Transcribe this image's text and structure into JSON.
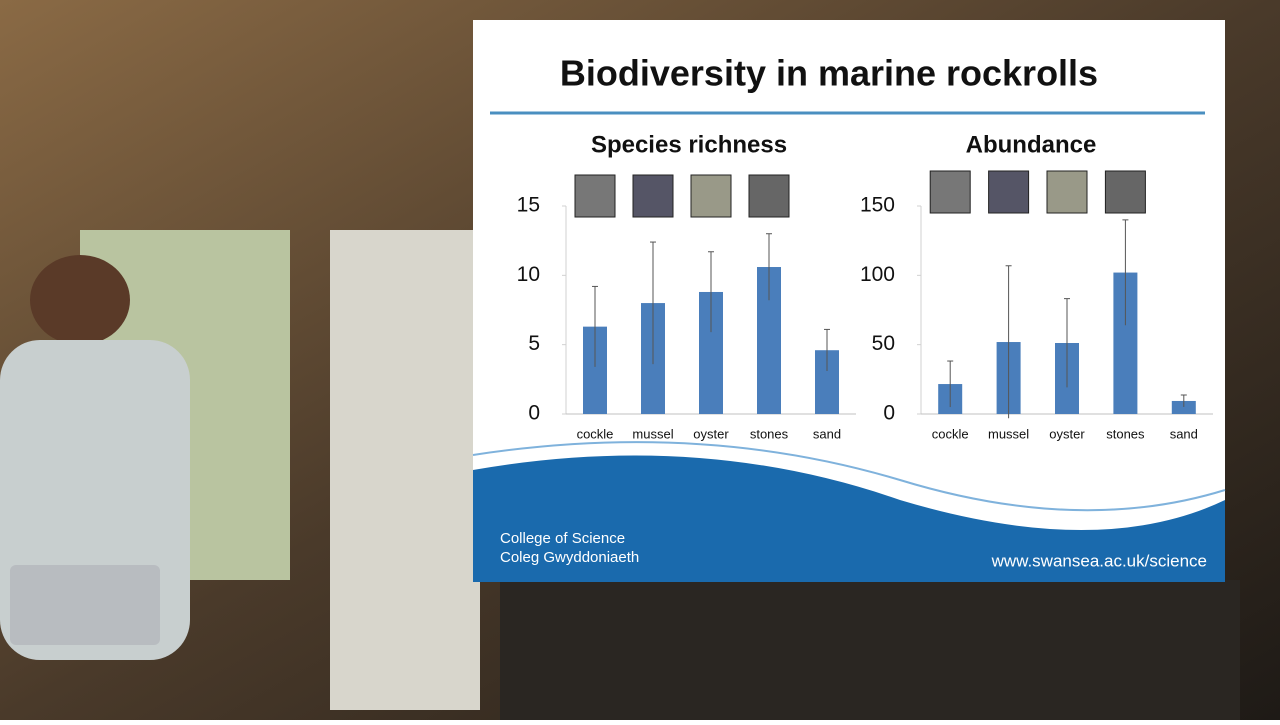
{
  "slide": {
    "title": "Biodiversity in marine rockrolls",
    "footer_left": [
      "College of Science",
      "Coleg Gwyddoniaeth"
    ],
    "url": "www.swansea.ac.uk/science"
  },
  "chart_data": [
    {
      "type": "bar",
      "title": "Species richness",
      "categories": [
        "cockle",
        "mussel",
        "oyster",
        "stones",
        "sand"
      ],
      "values": [
        6.3,
        8.0,
        8.8,
        10.6,
        4.6
      ],
      "errors": [
        2.9,
        4.4,
        2.9,
        2.4,
        1.5
      ],
      "color": "#4a7ebb",
      "ylim": [
        0,
        15
      ],
      "yticks": [
        0,
        5,
        10,
        15
      ],
      "grid": false
    },
    {
      "type": "bar",
      "title": "Abundance",
      "categories": [
        "cockle",
        "mussel",
        "oyster",
        "stones",
        "sand"
      ],
      "values": [
        21.6,
        51.9,
        51.2,
        102,
        9.4
      ],
      "errors": [
        16.6,
        55,
        32,
        38,
        4.3
      ],
      "color": "#4a7ebb",
      "ylim": [
        0,
        150
      ],
      "yticks": [
        0,
        50,
        100,
        150
      ],
      "grid": false
    }
  ]
}
